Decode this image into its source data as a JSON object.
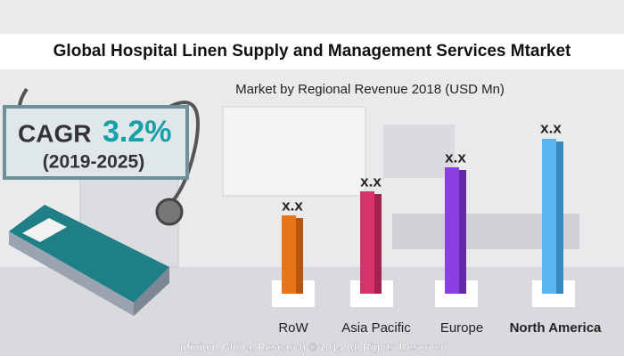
{
  "header": {
    "title": "Global Hospital Linen Supply and Management Services Mtarket",
    "subtitle": "Market by Regional Revenue 2018 (USD Mn)"
  },
  "cagr": {
    "label": "CAGR",
    "value": "3.2%",
    "period": "(2019-2025)"
  },
  "regions": [
    {
      "name": "RoW",
      "value_label": "x.x"
    },
    {
      "name": "Asia Pacific",
      "value_label": "x.x"
    },
    {
      "name": "Europe",
      "value_label": "x.x"
    },
    {
      "name": "North America",
      "value_label": "x.x"
    }
  ],
  "footer": "Infinium Global Research © 2019 All Rights Reserved"
}
